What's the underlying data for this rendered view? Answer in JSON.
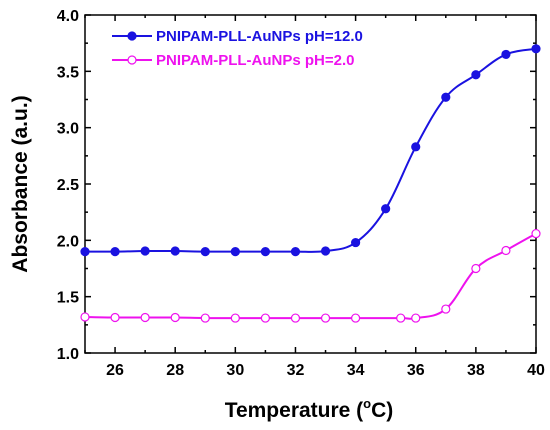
{
  "chart_data": {
    "type": "line",
    "xlabel": "Temperature (",
    "xlabel_sup": "o",
    "xlabel_suffix": "C)",
    "ylabel": "Absorbance (a.u.)",
    "xlim": [
      25,
      40
    ],
    "ylim": [
      1.0,
      4.0
    ],
    "xticks": [
      "26",
      "28",
      "30",
      "32",
      "34",
      "36",
      "38",
      "40"
    ],
    "yticks": [
      "1.0",
      "1.5",
      "2.0",
      "2.5",
      "3.0",
      "3.5",
      "4.0"
    ],
    "legend_position": "top-left",
    "series": [
      {
        "name": "PNIPAM-PLL-AuNPs pH=12.0",
        "color": "#1a12e0",
        "marker": "filled-circle",
        "x": [
          25,
          26,
          27,
          28,
          29,
          30,
          31,
          32,
          33,
          34,
          35,
          36,
          37,
          38,
          39,
          40
        ],
        "y": [
          1.9,
          1.9,
          1.905,
          1.905,
          1.9,
          1.9,
          1.9,
          1.9,
          1.905,
          1.98,
          2.28,
          2.83,
          3.27,
          3.47,
          3.65,
          3.7
        ]
      },
      {
        "name": "PNIPAM-PLL-AuNPs pH=2.0",
        "color": "#ee12ee",
        "marker": "open-circle",
        "x": [
          25,
          26,
          27,
          28,
          29,
          30,
          31,
          32,
          33,
          34,
          35.5,
          36,
          37,
          38,
          39,
          40
        ],
        "y": [
          1.32,
          1.315,
          1.315,
          1.315,
          1.31,
          1.31,
          1.31,
          1.31,
          1.31,
          1.31,
          1.31,
          1.31,
          1.39,
          1.75,
          1.91,
          2.06
        ]
      }
    ]
  }
}
